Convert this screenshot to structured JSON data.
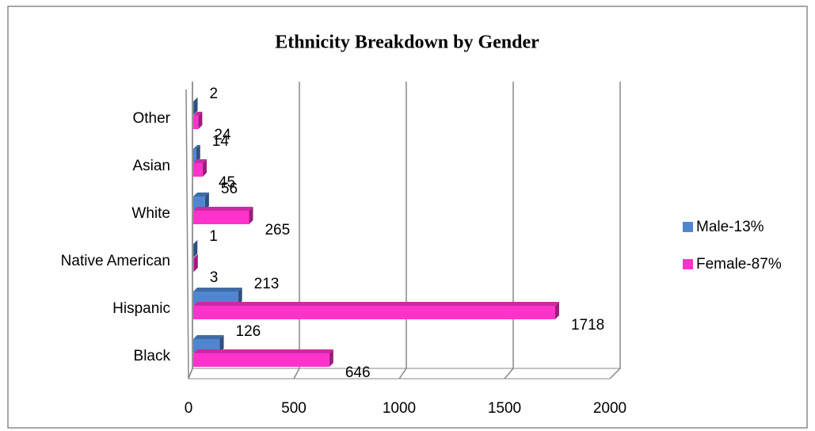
{
  "chart_data": {
    "type": "bar",
    "orientation": "horizontal",
    "title": "Ethnicity Breakdown by Gender",
    "categories": [
      "Black",
      "Hispanic",
      "Native American",
      "White",
      "Asian",
      "Other"
    ],
    "series": [
      {
        "name": "Male-13%",
        "color": "#4f86d0",
        "values": [
          126,
          213,
          1,
          56,
          14,
          2
        ]
      },
      {
        "name": "Female-87%",
        "color": "#ff33cc",
        "values": [
          646,
          1718,
          3,
          265,
          45,
          24
        ]
      }
    ],
    "xlim": [
      0,
      2000
    ],
    "xticks": [
      0,
      500,
      1000,
      1500,
      2000
    ],
    "grid": true,
    "legend": "right"
  }
}
